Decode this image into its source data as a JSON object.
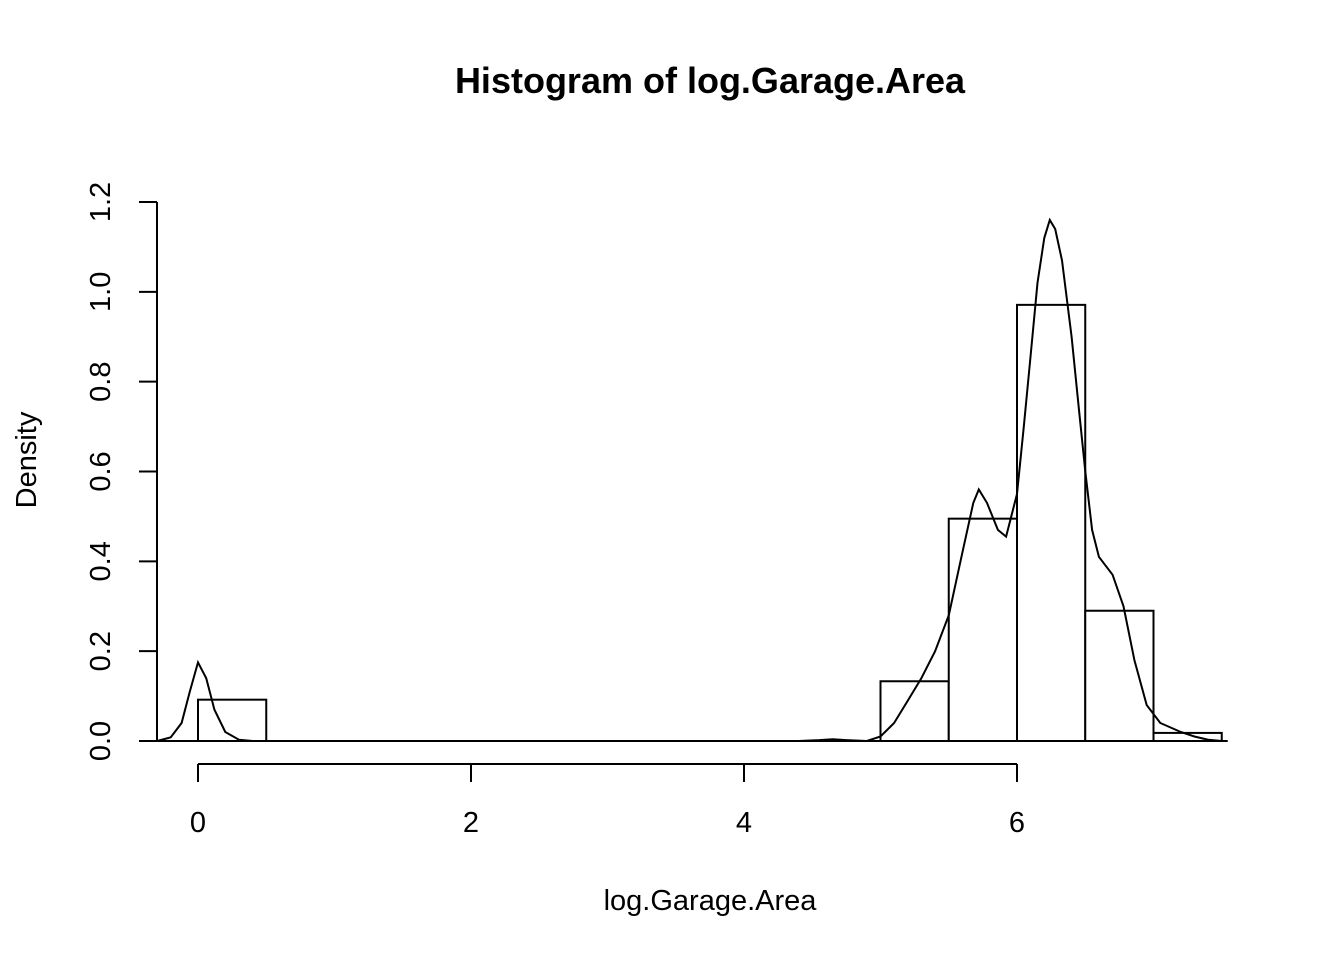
{
  "chart_data": {
    "type": "bar",
    "title": "Histogram of log.Garage.Area",
    "xlabel": "log.Garage.Area",
    "ylabel": "Density",
    "xlim": [
      -0.3,
      7.5
    ],
    "ylim": [
      0,
      1.2
    ],
    "x_ticks": [
      0,
      2,
      4,
      6
    ],
    "y_ticks": [
      0.0,
      0.2,
      0.4,
      0.6,
      0.8,
      1.0,
      1.2
    ],
    "x_tick_labels": [
      "0",
      "2",
      "4",
      "6"
    ],
    "y_tick_labels": [
      "0.0",
      "0.2",
      "0.4",
      "0.6",
      "0.8",
      "1.0",
      "1.2"
    ],
    "bin_width": 0.5,
    "bins": [
      {
        "start": 0.0,
        "end": 0.5,
        "density": 0.092
      },
      {
        "start": 0.5,
        "end": 1.0,
        "density": 0.0
      },
      {
        "start": 1.0,
        "end": 1.5,
        "density": 0.0
      },
      {
        "start": 1.5,
        "end": 2.0,
        "density": 0.0
      },
      {
        "start": 2.0,
        "end": 2.5,
        "density": 0.0
      },
      {
        "start": 2.5,
        "end": 3.0,
        "density": 0.0
      },
      {
        "start": 3.0,
        "end": 3.5,
        "density": 0.0
      },
      {
        "start": 3.5,
        "end": 4.0,
        "density": 0.0
      },
      {
        "start": 4.0,
        "end": 4.5,
        "density": 0.0
      },
      {
        "start": 4.5,
        "end": 5.0,
        "density": 0.0
      },
      {
        "start": 5.0,
        "end": 5.5,
        "density": 0.133
      },
      {
        "start": 5.5,
        "end": 6.0,
        "density": 0.495
      },
      {
        "start": 6.0,
        "end": 6.5,
        "density": 0.971
      },
      {
        "start": 6.5,
        "end": 7.0,
        "density": 0.29
      },
      {
        "start": 7.0,
        "end": 7.5,
        "density": 0.018
      }
    ],
    "density_curve": [
      [
        -0.3,
        0.0
      ],
      [
        -0.2,
        0.008
      ],
      [
        -0.12,
        0.04
      ],
      [
        -0.06,
        0.11
      ],
      [
        0.0,
        0.175
      ],
      [
        0.06,
        0.14
      ],
      [
        0.12,
        0.07
      ],
      [
        0.2,
        0.02
      ],
      [
        0.3,
        0.003
      ],
      [
        0.4,
        0.0
      ],
      [
        1.0,
        0.0
      ],
      [
        2.0,
        0.0
      ],
      [
        3.0,
        0.0
      ],
      [
        4.0,
        0.0
      ],
      [
        4.4,
        0.0
      ],
      [
        4.55,
        0.002
      ],
      [
        4.65,
        0.004
      ],
      [
        4.75,
        0.002
      ],
      [
        4.9,
        0.0
      ],
      [
        5.0,
        0.01
      ],
      [
        5.1,
        0.04
      ],
      [
        5.2,
        0.09
      ],
      [
        5.3,
        0.14
      ],
      [
        5.4,
        0.2
      ],
      [
        5.5,
        0.28
      ],
      [
        5.6,
        0.42
      ],
      [
        5.68,
        0.53
      ],
      [
        5.72,
        0.56
      ],
      [
        5.78,
        0.53
      ],
      [
        5.86,
        0.47
      ],
      [
        5.92,
        0.455
      ],
      [
        6.0,
        0.55
      ],
      [
        6.05,
        0.7
      ],
      [
        6.1,
        0.86
      ],
      [
        6.15,
        1.02
      ],
      [
        6.2,
        1.12
      ],
      [
        6.24,
        1.16
      ],
      [
        6.28,
        1.14
      ],
      [
        6.33,
        1.07
      ],
      [
        6.4,
        0.9
      ],
      [
        6.45,
        0.75
      ],
      [
        6.5,
        0.6
      ],
      [
        6.55,
        0.47
      ],
      [
        6.6,
        0.41
      ],
      [
        6.7,
        0.37
      ],
      [
        6.78,
        0.3
      ],
      [
        6.86,
        0.18
      ],
      [
        6.95,
        0.08
      ],
      [
        7.05,
        0.04
      ],
      [
        7.2,
        0.02
      ],
      [
        7.3,
        0.01
      ],
      [
        7.4,
        0.003
      ],
      [
        7.5,
        0.0
      ]
    ]
  }
}
